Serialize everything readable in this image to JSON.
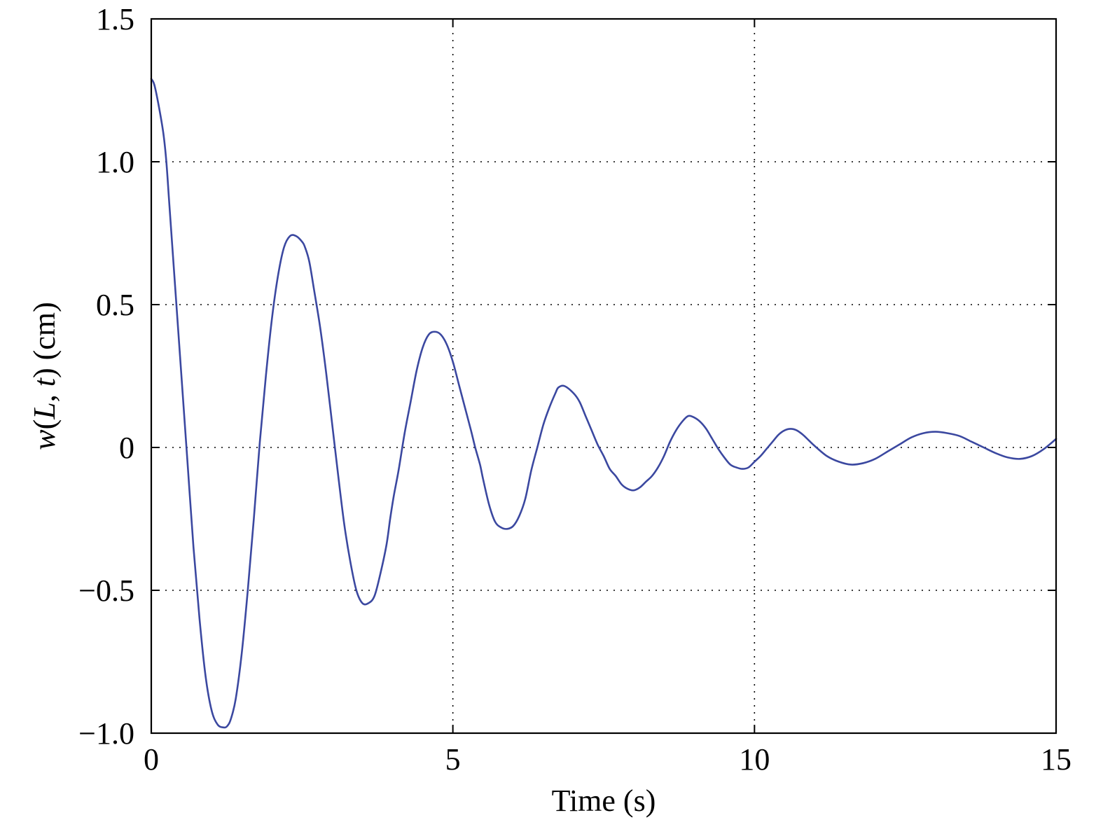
{
  "chart_data": {
    "type": "line",
    "title": "",
    "xlabel": "Time (s)",
    "ylabel": {
      "parts": [
        {
          "text": "w",
          "italic": true
        },
        {
          "text": "(",
          "italic": false
        },
        {
          "text": "L",
          "italic": true
        },
        {
          "text": ", ",
          "italic": false
        },
        {
          "text": "t",
          "italic": true
        },
        {
          "text": ") (cm)",
          "italic": false
        }
      ]
    },
    "xlim": [
      0,
      15
    ],
    "ylim": [
      -1.0,
      1.5
    ],
    "xticks": [
      0,
      5,
      10,
      15
    ],
    "xtick_labels": [
      "0",
      "5",
      "10",
      "15"
    ],
    "yticks": [
      -1.0,
      -0.5,
      0,
      0.5,
      1.0,
      1.5
    ],
    "ytick_labels": [
      "−1.0",
      "−0.5",
      "0",
      "0.5",
      "1.0",
      "1.5"
    ],
    "grid": true,
    "grid_style": "dotted",
    "legend": "none",
    "colors": {
      "series": "#3b48a0",
      "axes": "#000000",
      "background": "#ffffff"
    },
    "series": [
      {
        "x": [
          0,
          0.05,
          0.12,
          0.2,
          0.25,
          0.3,
          0.4,
          0.5,
          0.6,
          0.7,
          0.8,
          0.9,
          1.0,
          1.1,
          1.2,
          1.26,
          1.32,
          1.4,
          1.5,
          1.6,
          1.7,
          1.8,
          1.9,
          2.0,
          2.1,
          2.2,
          2.3,
          2.4,
          2.5,
          2.55,
          2.62,
          2.7,
          2.8,
          2.9,
          3.0,
          3.1,
          3.2,
          3.3,
          3.4,
          3.5,
          3.6,
          3.7,
          3.8,
          3.9,
          3.96,
          4.02,
          4.1,
          4.2,
          4.3,
          4.4,
          4.5,
          4.6,
          4.7,
          4.8,
          4.9,
          5.0,
          5.1,
          5.2,
          5.3,
          5.37,
          5.45,
          5.5,
          5.6,
          5.7,
          5.8,
          5.9,
          6.0,
          6.1,
          6.2,
          6.3,
          6.4,
          6.5,
          6.6,
          6.7,
          6.75,
          6.85,
          7.0,
          7.1,
          7.2,
          7.3,
          7.4,
          7.5,
          7.6,
          7.7,
          7.8,
          7.9,
          8.0,
          8.1,
          8.2,
          8.3,
          8.4,
          8.5,
          8.6,
          8.7,
          8.8,
          8.9,
          9.0,
          9.1,
          9.2,
          9.3,
          9.4,
          9.5,
          9.6,
          9.7,
          9.8,
          9.9,
          10.0,
          10.1,
          10.2,
          10.3,
          10.4,
          10.5,
          10.6,
          10.7,
          10.8,
          10.9,
          11.0,
          11.2,
          11.4,
          11.6,
          11.8,
          12.0,
          12.2,
          12.4,
          12.6,
          12.8,
          13.0,
          13.2,
          13.4,
          13.6,
          13.8,
          14.0,
          14.2,
          14.4,
          14.6,
          14.8,
          15.0
        ],
        "y": [
          1.29,
          1.27,
          1.2,
          1.1,
          1.0,
          0.85,
          0.55,
          0.25,
          -0.05,
          -0.35,
          -0.6,
          -0.8,
          -0.92,
          -0.97,
          -0.98,
          -0.975,
          -0.95,
          -0.88,
          -0.72,
          -0.5,
          -0.25,
          0.02,
          0.25,
          0.45,
          0.6,
          0.7,
          0.74,
          0.74,
          0.72,
          0.7,
          0.65,
          0.55,
          0.42,
          0.26,
          0.08,
          -0.1,
          -0.27,
          -0.4,
          -0.5,
          -0.545,
          -0.545,
          -0.52,
          -0.44,
          -0.34,
          -0.25,
          -0.17,
          -0.08,
          0.05,
          0.16,
          0.27,
          0.35,
          0.395,
          0.405,
          0.395,
          0.36,
          0.3,
          0.22,
          0.14,
          0.06,
          0.0,
          -0.06,
          -0.11,
          -0.2,
          -0.26,
          -0.28,
          -0.285,
          -0.275,
          -0.24,
          -0.18,
          -0.08,
          0.0,
          0.08,
          0.14,
          0.19,
          0.21,
          0.215,
          0.19,
          0.16,
          0.11,
          0.06,
          0.01,
          -0.03,
          -0.075,
          -0.1,
          -0.13,
          -0.145,
          -0.15,
          -0.14,
          -0.12,
          -0.1,
          -0.07,
          -0.03,
          0.02,
          0.06,
          0.09,
          0.11,
          0.105,
          0.09,
          0.065,
          0.03,
          -0.005,
          -0.035,
          -0.06,
          -0.07,
          -0.075,
          -0.07,
          -0.05,
          -0.03,
          -0.005,
          0.02,
          0.045,
          0.06,
          0.065,
          0.06,
          0.045,
          0.025,
          0.005,
          -0.03,
          -0.05,
          -0.06,
          -0.055,
          -0.04,
          -0.015,
          0.01,
          0.035,
          0.05,
          0.055,
          0.05,
          0.04,
          0.02,
          0.0,
          -0.02,
          -0.035,
          -0.04,
          -0.03,
          -0.005,
          0.03
        ]
      }
    ]
  }
}
